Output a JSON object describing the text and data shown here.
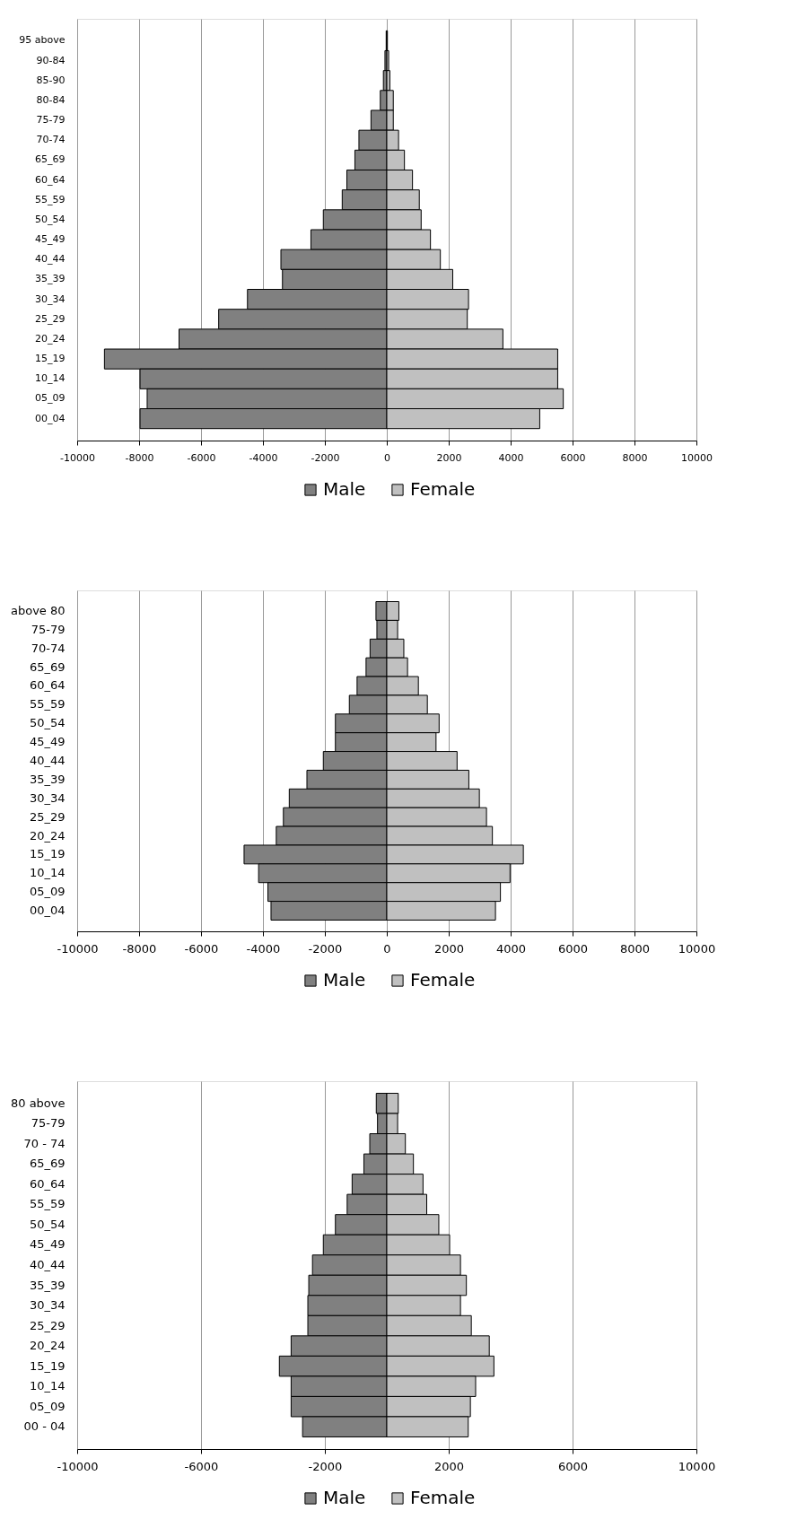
{
  "chart_data": [
    {
      "type": "bar",
      "orientation": "horizontal",
      "stacked": true,
      "categories": [
        "95 above",
        "90-84",
        "85-90",
        "80-84",
        "75-79",
        "70-74",
        "65_69",
        "60_64",
        "55_59",
        "50_54",
        "45_49",
        "40_44",
        "35_39",
        "30_34",
        "25_29",
        "20_24",
        "15_19",
        "10_14",
        "05_09",
        "00_04"
      ],
      "series": [
        {
          "name": "Male",
          "color": "#808080",
          "values": [
            -20,
            -60,
            -110,
            -210,
            -510,
            -900,
            -1030,
            -1290,
            -1440,
            -2050,
            -2450,
            -3420,
            -3370,
            -4500,
            -5430,
            -6710,
            -9120,
            -7970,
            -7740,
            -7970
          ]
        },
        {
          "name": "Female",
          "color": "#c0c0c0",
          "values": [
            20,
            60,
            100,
            210,
            210,
            380,
            570,
            830,
            1050,
            1110,
            1410,
            1730,
            2130,
            2640,
            2600,
            3750,
            5520,
            5520,
            5700,
            4940
          ]
        }
      ],
      "xlim": [
        -10000,
        10000
      ],
      "xticks": [
        -10000,
        -8000,
        -6000,
        -4000,
        -2000,
        0,
        2000,
        4000,
        6000,
        8000,
        10000
      ],
      "grid": "x",
      "legend": "bottom"
    },
    {
      "type": "bar",
      "orientation": "horizontal",
      "stacked": true,
      "categories": [
        "above 80",
        "75-79",
        "70-74",
        "65_69",
        "60_64",
        "55_59",
        "50_54",
        "45_49",
        "40_44",
        "35_39",
        "30_34",
        "25_29",
        "20_24",
        "15_19",
        "10_14",
        "05_09",
        "00_04"
      ],
      "series": [
        {
          "name": "Male",
          "color": "#808080",
          "values": [
            -350,
            -320,
            -540,
            -670,
            -960,
            -1210,
            -1660,
            -1660,
            -2050,
            -2580,
            -3150,
            -3340,
            -3570,
            -4610,
            -4140,
            -3840,
            -3740
          ]
        },
        {
          "name": "Female",
          "color": "#c0c0c0",
          "values": [
            390,
            350,
            550,
            670,
            1020,
            1310,
            1690,
            1590,
            2270,
            2650,
            2990,
            3220,
            3410,
            4410,
            3980,
            3670,
            3510
          ]
        }
      ],
      "xlim": [
        -10000,
        10000
      ],
      "xticks": [
        -10000,
        -8000,
        -6000,
        -4000,
        -2000,
        0,
        2000,
        4000,
        6000,
        8000,
        10000
      ],
      "grid": "x",
      "legend": "bottom"
    },
    {
      "type": "bar",
      "orientation": "horizontal",
      "stacked": true,
      "categories": [
        "80 above",
        "75-79",
        "70 - 74",
        "65_69",
        "60_64",
        "55_59",
        "50_54",
        "45_49",
        "40_44",
        "35_39",
        "30_34",
        "25_29",
        "20_24",
        "15_19",
        "10_14",
        "05_09",
        "00 - 04"
      ],
      "series": [
        {
          "name": "Male",
          "color": "#808080",
          "values": [
            -340,
            -300,
            -550,
            -740,
            -1120,
            -1280,
            -1660,
            -2050,
            -2400,
            -2520,
            -2550,
            -2550,
            -3090,
            -3470,
            -3090,
            -3090,
            -2720
          ]
        },
        {
          "name": "Female",
          "color": "#c0c0c0",
          "values": [
            370,
            350,
            600,
            860,
            1170,
            1290,
            1680,
            2030,
            2380,
            2570,
            2380,
            2730,
            3310,
            3460,
            2870,
            2700,
            2630
          ]
        }
      ],
      "xlim": [
        -10000,
        10000
      ],
      "xticks": [
        -10000,
        -6000,
        -2000,
        2000,
        6000,
        10000
      ],
      "grid": "x",
      "legend": "bottom"
    }
  ]
}
